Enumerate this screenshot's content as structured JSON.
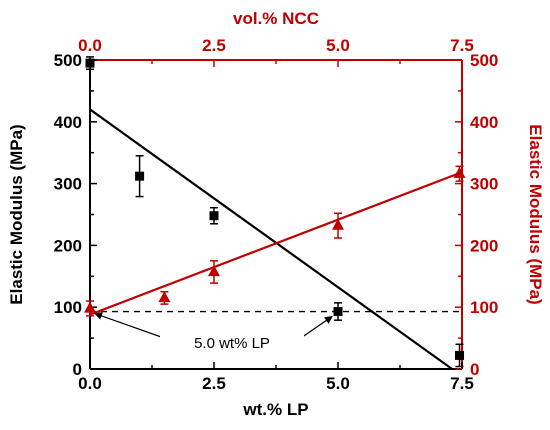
{
  "chart_data": {
    "type": "scatter",
    "axes": {
      "bottom": {
        "label": "wt.% LP",
        "range": [
          0,
          7.5
        ],
        "ticks": [
          "0.0",
          "2.5",
          "5.0",
          "7.5"
        ]
      },
      "top": {
        "label": "vol.% NCC",
        "range": [
          0,
          7.5
        ],
        "ticks": [
          "0.0",
          "2.5",
          "5.0",
          "7.5"
        ],
        "color": "#c00000"
      },
      "left": {
        "label": "Elastic Modulus (MPa)",
        "range": [
          0,
          500
        ],
        "ticks": [
          "0",
          "100",
          "200",
          "300",
          "400",
          "500"
        ]
      },
      "right": {
        "label": "Elastic Modulus (MPa)",
        "range": [
          0,
          500
        ],
        "ticks": [
          "0",
          "100",
          "200",
          "300",
          "400",
          "500"
        ],
        "color": "#c00000"
      }
    },
    "series": [
      {
        "axis": "bottom-left",
        "color": "#000000",
        "marker": "square",
        "points": [
          {
            "x": 0.0,
            "y": 495,
            "err": 10
          },
          {
            "x": 1.0,
            "y": 312,
            "err": 33
          },
          {
            "x": 2.5,
            "y": 248,
            "err": 13
          },
          {
            "x": 5.0,
            "y": 93,
            "err": 14
          },
          {
            "x": 7.45,
            "y": 22,
            "err": 18
          }
        ]
      },
      {
        "axis": "top-right",
        "color": "#c00000",
        "marker": "triangle",
        "points": [
          {
            "x": 0.0,
            "y": 98,
            "err": 12
          },
          {
            "x": 1.5,
            "y": 115,
            "err": 10
          },
          {
            "x": 2.5,
            "y": 157,
            "err": 18
          },
          {
            "x": 5.0,
            "y": 232,
            "err": 20
          },
          {
            "x": 7.45,
            "y": 316,
            "err": 12
          }
        ]
      }
    ],
    "fit_lines": [
      {
        "axis": "bottom-left",
        "color": "#000000",
        "style": "solid",
        "x": [
          0.0,
          7.3
        ],
        "y": [
          420,
          0
        ]
      },
      {
        "axis": "top-right",
        "color": "#c00000",
        "style": "solid",
        "x": [
          0.0,
          7.45
        ],
        "y": [
          88,
          317
        ]
      }
    ],
    "reference_line": {
      "axis": "bottom-left",
      "style": "dashed",
      "y": 93,
      "x": [
        0.0,
        7.5
      ]
    },
    "annotation": {
      "text": "5.0 wt% LP"
    }
  }
}
